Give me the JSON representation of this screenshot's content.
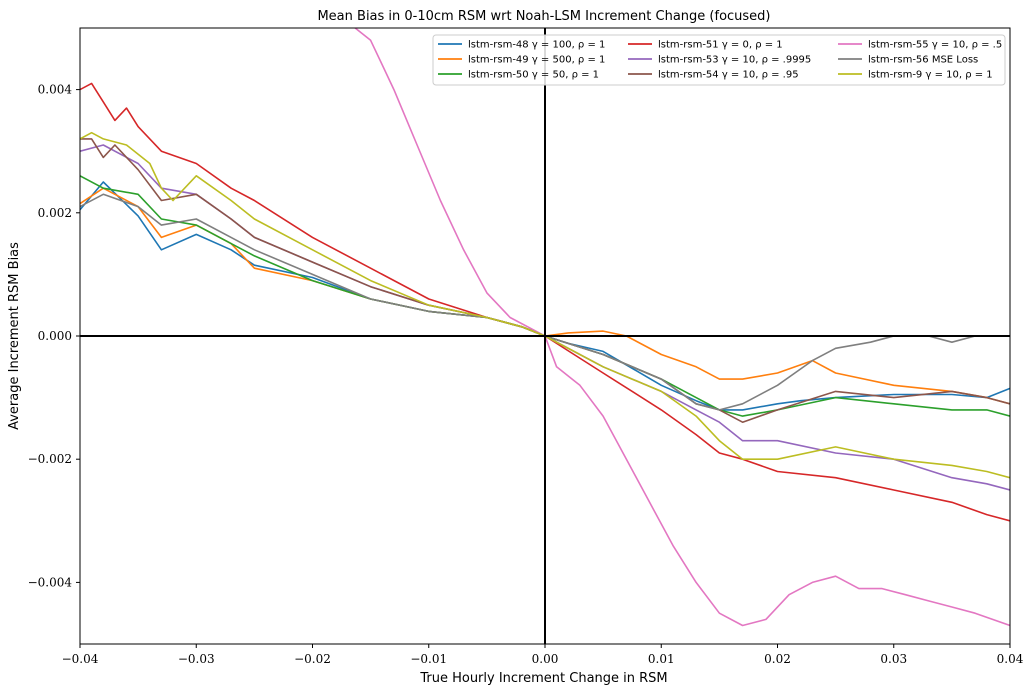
{
  "chart_data": {
    "type": "line",
    "title": "Mean Bias in 0-10cm RSM wrt Noah-LSM Increment Change (focused)",
    "xlabel": "True Hourly Increment Change in RSM",
    "ylabel": "Average Increment RSM Bias",
    "xlim": [
      -0.04,
      0.04
    ],
    "ylim": [
      -0.005,
      0.005
    ],
    "xticks": [
      -0.04,
      -0.03,
      -0.02,
      -0.01,
      0.0,
      0.01,
      0.02,
      0.03,
      0.04
    ],
    "xtick_labels": [
      "−0.04",
      "−0.03",
      "−0.02",
      "−0.01",
      "0.00",
      "0.01",
      "0.02",
      "0.03",
      "0.04"
    ],
    "yticks": [
      -0.004,
      -0.002,
      0.0,
      0.002,
      0.004
    ],
    "ytick_labels": [
      "−0.004",
      "−0.002",
      "0.000",
      "0.002",
      "0.004"
    ],
    "reference_lines": {
      "x": 0,
      "y": 0
    },
    "legend": {
      "placement": "top-right",
      "columns": 3
    },
    "series": [
      {
        "name": "lstm-rsm-48 γ = 100, ρ = 1",
        "color": "#1f77b4",
        "x": [
          -0.04,
          -0.038,
          -0.035,
          -0.033,
          -0.03,
          -0.027,
          -0.025,
          -0.02,
          -0.015,
          -0.01,
          -0.005,
          -0.002,
          0,
          0.002,
          0.005,
          0.01,
          0.013,
          0.015,
          0.017,
          0.02,
          0.022,
          0.025,
          0.03,
          0.035,
          0.038,
          0.04
        ],
        "y": [
          0.00205,
          0.0025,
          0.00195,
          0.0014,
          0.00165,
          0.0014,
          0.00115,
          0.00095,
          0.0006,
          0.0004,
          0.0003,
          0.00015,
          0,
          -0.00012,
          -0.00025,
          -0.0008,
          -0.00105,
          -0.0012,
          -0.0012,
          -0.0011,
          -0.00105,
          -0.001,
          -0.00095,
          -0.00095,
          -0.001,
          -0.00085
        ]
      },
      {
        "name": "lstm-rsm-49 γ = 500, ρ = 1",
        "color": "#ff7f0e",
        "x": [
          -0.04,
          -0.038,
          -0.035,
          -0.033,
          -0.03,
          -0.027,
          -0.025,
          -0.02,
          -0.015,
          -0.01,
          -0.005,
          -0.002,
          0,
          0.002,
          0.005,
          0.007,
          0.01,
          0.013,
          0.015,
          0.017,
          0.02,
          0.023,
          0.025,
          0.03,
          0.035,
          0.038,
          0.04
        ],
        "y": [
          0.00215,
          0.0024,
          0.0021,
          0.0016,
          0.0018,
          0.0015,
          0.0011,
          0.0009,
          0.0006,
          0.0004,
          0.0003,
          0.00015,
          0,
          5e-05,
          8e-05,
          0.0,
          -0.0003,
          -0.0005,
          -0.0007,
          -0.0007,
          -0.0006,
          -0.0004,
          -0.0006,
          -0.0008,
          -0.0009,
          -0.001,
          -0.0011
        ]
      },
      {
        "name": "lstm-rsm-50 γ = 50, ρ = 1",
        "color": "#2ca02c",
        "x": [
          -0.04,
          -0.038,
          -0.035,
          -0.033,
          -0.03,
          -0.027,
          -0.025,
          -0.02,
          -0.015,
          -0.01,
          -0.005,
          -0.002,
          0,
          0.005,
          0.01,
          0.013,
          0.015,
          0.017,
          0.02,
          0.025,
          0.03,
          0.035,
          0.038,
          0.04
        ],
        "y": [
          0.0026,
          0.0024,
          0.0023,
          0.0019,
          0.0018,
          0.0015,
          0.0013,
          0.0009,
          0.0006,
          0.0004,
          0.0003,
          0.00015,
          0,
          -0.0003,
          -0.0007,
          -0.001,
          -0.0012,
          -0.0013,
          -0.0012,
          -0.001,
          -0.0011,
          -0.0012,
          -0.0012,
          -0.0013
        ]
      },
      {
        "name": "lstm-rsm-51 γ = 0, ρ = 1",
        "color": "#d62728",
        "x": [
          -0.04,
          -0.039,
          -0.038,
          -0.037,
          -0.036,
          -0.035,
          -0.033,
          -0.03,
          -0.027,
          -0.025,
          -0.02,
          -0.015,
          -0.01,
          -0.005,
          -0.002,
          0,
          0.005,
          0.01,
          0.013,
          0.015,
          0.017,
          0.02,
          0.025,
          0.03,
          0.035,
          0.038,
          0.04
        ],
        "y": [
          0.004,
          0.0041,
          0.0038,
          0.0035,
          0.0037,
          0.0034,
          0.003,
          0.0028,
          0.0024,
          0.0022,
          0.0016,
          0.0011,
          0.0006,
          0.0003,
          0.00015,
          0,
          -0.0006,
          -0.0012,
          -0.0016,
          -0.0019,
          -0.002,
          -0.0022,
          -0.0023,
          -0.0025,
          -0.0027,
          -0.0029,
          -0.003
        ]
      },
      {
        "name": "lstm-rsm-53 γ = 10, ρ = .9995",
        "color": "#9467bd",
        "x": [
          -0.04,
          -0.038,
          -0.035,
          -0.033,
          -0.03,
          -0.027,
          -0.025,
          -0.02,
          -0.015,
          -0.01,
          -0.005,
          -0.002,
          0,
          0.005,
          0.01,
          0.013,
          0.015,
          0.017,
          0.02,
          0.025,
          0.03,
          0.035,
          0.038,
          0.04
        ],
        "y": [
          0.003,
          0.0031,
          0.0028,
          0.0024,
          0.0023,
          0.0019,
          0.0016,
          0.0012,
          0.0008,
          0.0005,
          0.0003,
          0.00015,
          0,
          -0.0005,
          -0.0009,
          -0.0012,
          -0.0014,
          -0.0017,
          -0.0017,
          -0.0019,
          -0.002,
          -0.0023,
          -0.0024,
          -0.0025
        ]
      },
      {
        "name": "lstm-rsm-54 γ = 10, ρ = .95",
        "color": "#8c564b",
        "x": [
          -0.04,
          -0.039,
          -0.038,
          -0.037,
          -0.035,
          -0.033,
          -0.03,
          -0.027,
          -0.025,
          -0.02,
          -0.015,
          -0.01,
          -0.005,
          -0.002,
          0,
          0.005,
          0.01,
          0.013,
          0.015,
          0.017,
          0.02,
          0.025,
          0.03,
          0.035,
          0.038,
          0.04
        ],
        "y": [
          0.0032,
          0.0032,
          0.0029,
          0.0031,
          0.0027,
          0.0022,
          0.0023,
          0.0019,
          0.0016,
          0.0012,
          0.0008,
          0.0005,
          0.0003,
          0.00015,
          0,
          -0.0003,
          -0.0007,
          -0.0011,
          -0.0012,
          -0.0014,
          -0.0012,
          -0.0009,
          -0.001,
          -0.0009,
          -0.001,
          -0.0011
        ]
      },
      {
        "name": "lstm-rsm-55 γ = 10, ρ = .5",
        "color": "#e377c2",
        "x": [
          -0.017,
          -0.015,
          -0.013,
          -0.011,
          -0.009,
          -0.007,
          -0.005,
          -0.003,
          -0.001,
          0,
          0.001,
          0.003,
          0.005,
          0.007,
          0.009,
          0.011,
          0.013,
          0.015,
          0.017,
          0.019,
          0.021,
          0.023,
          0.025,
          0.027,
          0.029,
          0.031,
          0.033,
          0.035,
          0.037,
          0.04
        ],
        "y": [
          0.0051,
          0.0048,
          0.004,
          0.0031,
          0.0022,
          0.0014,
          0.0007,
          0.0003,
          0.0001,
          0,
          -0.0005,
          -0.0008,
          -0.0013,
          -0.002,
          -0.0027,
          -0.0034,
          -0.004,
          -0.0045,
          -0.0047,
          -0.0046,
          -0.0042,
          -0.004,
          -0.0039,
          -0.0041,
          -0.0041,
          -0.0042,
          -0.0043,
          -0.0044,
          -0.0045,
          -0.0047
        ]
      },
      {
        "name": "lstm-rsm-56 MSE Loss",
        "color": "#7f7f7f",
        "x": [
          -0.04,
          -0.038,
          -0.035,
          -0.033,
          -0.03,
          -0.027,
          -0.025,
          -0.02,
          -0.015,
          -0.01,
          -0.005,
          -0.002,
          0,
          0.005,
          0.01,
          0.013,
          0.015,
          0.017,
          0.02,
          0.023,
          0.025,
          0.028,
          0.03,
          0.033,
          0.035,
          0.037,
          0.04
        ],
        "y": [
          0.0021,
          0.0023,
          0.0021,
          0.0018,
          0.0019,
          0.0016,
          0.0014,
          0.001,
          0.0006,
          0.0004,
          0.0003,
          0.00015,
          0,
          -0.0003,
          -0.0007,
          -0.0011,
          -0.0012,
          -0.0011,
          -0.0008,
          -0.0004,
          -0.0002,
          -0.0001,
          0.0,
          0.0,
          -0.0001,
          0.0,
          0.0
        ]
      },
      {
        "name": "lstm-rsm-9 γ = 10, ρ = 1",
        "color": "#bcbd22",
        "x": [
          -0.04,
          -0.039,
          -0.038,
          -0.036,
          -0.034,
          -0.033,
          -0.032,
          -0.03,
          -0.027,
          -0.025,
          -0.02,
          -0.015,
          -0.01,
          -0.005,
          -0.002,
          0,
          0.005,
          0.01,
          0.013,
          0.015,
          0.017,
          0.02,
          0.025,
          0.03,
          0.035,
          0.038,
          0.04
        ],
        "y": [
          0.0032,
          0.0033,
          0.0032,
          0.0031,
          0.0028,
          0.0024,
          0.0022,
          0.0026,
          0.0022,
          0.0019,
          0.0014,
          0.0009,
          0.0005,
          0.0003,
          0.00015,
          0,
          -0.0005,
          -0.0009,
          -0.0013,
          -0.0017,
          -0.002,
          -0.002,
          -0.0018,
          -0.002,
          -0.0021,
          -0.0022,
          -0.0023
        ]
      }
    ]
  }
}
